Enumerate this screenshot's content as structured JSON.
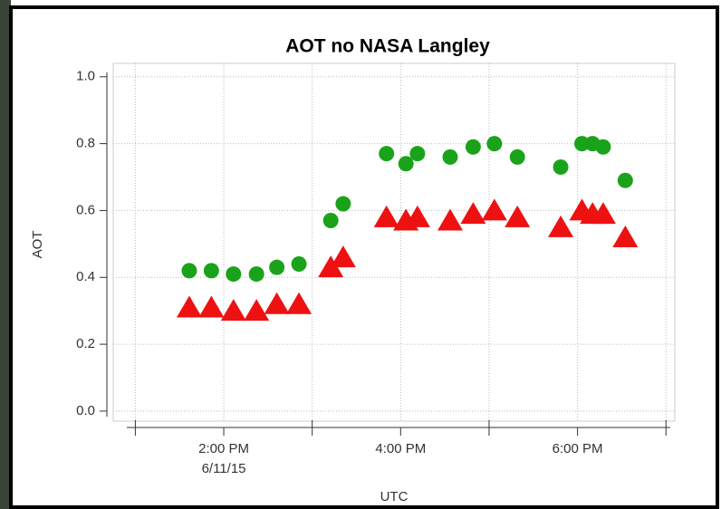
{
  "chart_data": {
    "type": "scatter",
    "title": "AOT no NASA Langley",
    "xlabel": "UTC",
    "ylabel": "AOT",
    "x": [
      13.61,
      13.86,
      14.11,
      14.37,
      14.6,
      14.85,
      15.21,
      15.35,
      15.84,
      16.06,
      16.19,
      16.56,
      16.82,
      17.06,
      17.32,
      17.81,
      18.05,
      18.17,
      18.29,
      18.54
    ],
    "series": [
      {
        "color": "#1aa31a",
        "marker": "circle",
        "values": [
          0.42,
          0.42,
          0.41,
          0.41,
          0.43,
          0.44,
          0.57,
          0.62,
          0.77,
          0.74,
          0.77,
          0.76,
          0.79,
          0.8,
          0.76,
          0.73,
          0.8,
          0.8,
          0.79,
          0.69
        ]
      },
      {
        "color": "#ee1111",
        "marker": "triangle",
        "values": [
          0.31,
          0.31,
          0.3,
          0.3,
          0.32,
          0.32,
          0.43,
          0.46,
          0.58,
          0.57,
          0.58,
          0.57,
          0.59,
          0.6,
          0.58,
          0.55,
          0.6,
          0.59,
          0.59,
          0.52
        ]
      }
    ],
    "xlim": [
      12.75,
      19.1
    ],
    "xticks": [
      {
        "value": 14,
        "label": "2:00 PM\n6/11/15"
      },
      {
        "value": 16,
        "label": "4:00 PM"
      },
      {
        "value": 18,
        "label": "6:00 PM"
      }
    ],
    "minor_xticks": [
      13,
      15,
      17,
      19
    ],
    "ylim": [
      -0.03,
      1.04
    ],
    "yticks": [
      {
        "value": 0,
        "label": "0.0"
      },
      0.2,
      0.4,
      0.6,
      0.8,
      {
        "value": 1,
        "label": "1.0"
      }
    ],
    "grid": true
  }
}
